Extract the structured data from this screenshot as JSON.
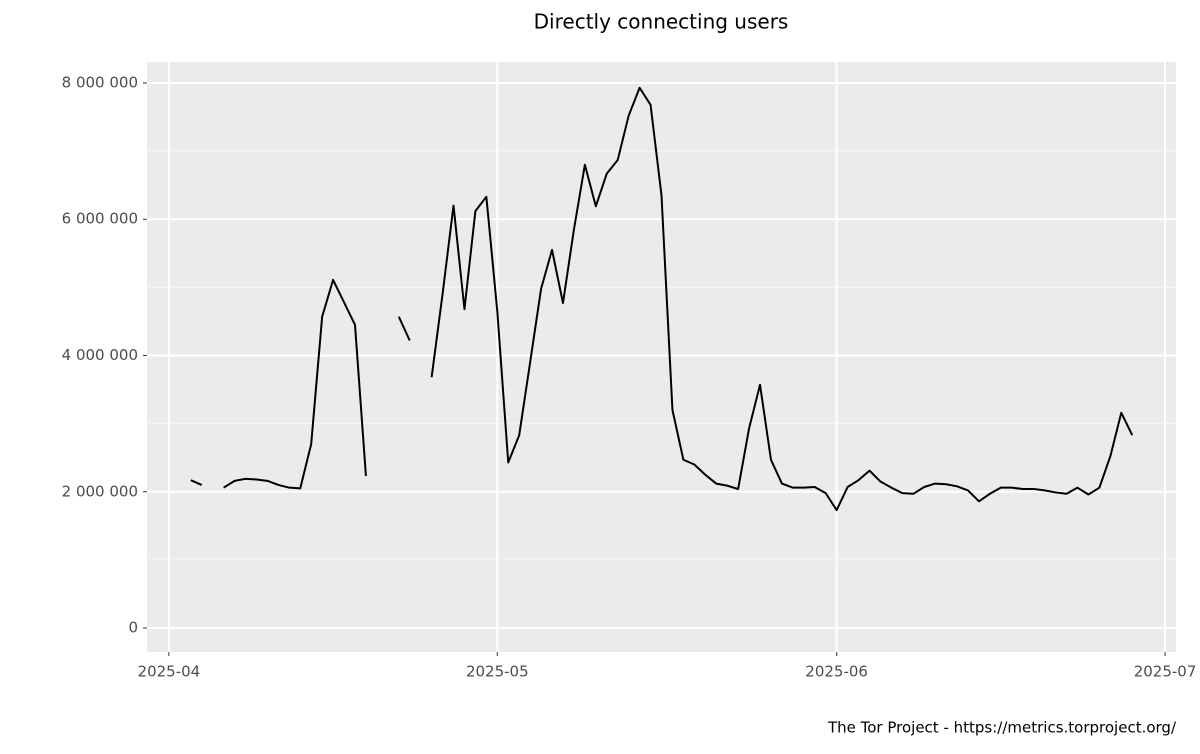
{
  "chart_data": {
    "type": "line",
    "title": "Directly connecting users",
    "caption": "The Tor Project - https://metrics.torproject.org/",
    "x": [
      "2025-04-03",
      "2025-04-04",
      "2025-04-05",
      "2025-04-06",
      "2025-04-07",
      "2025-04-08",
      "2025-04-09",
      "2025-04-10",
      "2025-04-11",
      "2025-04-12",
      "2025-04-13",
      "2025-04-14",
      "2025-04-15",
      "2025-04-16",
      "2025-04-17",
      "2025-04-18",
      "2025-04-19",
      "2025-04-20",
      "2025-04-21",
      "2025-04-22",
      "2025-04-23",
      "2025-04-24",
      "2025-04-25",
      "2025-04-26",
      "2025-04-27",
      "2025-04-28",
      "2025-04-29",
      "2025-04-30",
      "2025-05-01",
      "2025-05-02",
      "2025-05-03",
      "2025-05-04",
      "2025-05-05",
      "2025-05-06",
      "2025-05-07",
      "2025-05-08",
      "2025-05-09",
      "2025-05-10",
      "2025-05-11",
      "2025-05-12",
      "2025-05-13",
      "2025-05-14",
      "2025-05-15",
      "2025-05-16",
      "2025-05-17",
      "2025-05-18",
      "2025-05-19",
      "2025-05-20",
      "2025-05-21",
      "2025-05-22",
      "2025-05-23",
      "2025-05-24",
      "2025-05-25",
      "2025-05-26",
      "2025-05-27",
      "2025-05-28",
      "2025-05-29",
      "2025-05-30",
      "2025-05-31",
      "2025-06-01",
      "2025-06-02",
      "2025-06-03",
      "2025-06-04",
      "2025-06-05",
      "2025-06-06",
      "2025-06-07",
      "2025-06-08",
      "2025-06-09",
      "2025-06-10",
      "2025-06-11",
      "2025-06-12",
      "2025-06-13",
      "2025-06-14",
      "2025-06-15",
      "2025-06-16",
      "2025-06-17",
      "2025-06-18",
      "2025-06-19",
      "2025-06-20",
      "2025-06-21",
      "2025-06-22",
      "2025-06-23",
      "2025-06-24",
      "2025-06-25",
      "2025-06-26",
      "2025-06-27",
      "2025-06-28"
    ],
    "series": [
      {
        "color": "#000000",
        "values": [
          2170000,
          2100000,
          null,
          2060000,
          2160000,
          2190000,
          2180000,
          2160000,
          2100000,
          2060000,
          2050000,
          2700000,
          4570000,
          5110000,
          4780000,
          4450000,
          2230000,
          null,
          null,
          4570000,
          4220000,
          null,
          3680000,
          4900000,
          6200000,
          4680000,
          6120000,
          6330000,
          4650000,
          2430000,
          2830000,
          3900000,
          4980000,
          5550000,
          4770000,
          5850000,
          6800000,
          6190000,
          6670000,
          6870000,
          7520000,
          7930000,
          7680000,
          6350000,
          3200000,
          2470000,
          2400000,
          2250000,
          2120000,
          2090000,
          2040000,
          2930000,
          3570000,
          2470000,
          2120000,
          2060000,
          2060000,
          2070000,
          1980000,
          1730000,
          2070000,
          2170000,
          2310000,
          2150000,
          2060000,
          1980000,
          1970000,
          2070000,
          2120000,
          2110000,
          2080000,
          2020000,
          1860000,
          1970000,
          2060000,
          2060000,
          2040000,
          2040000,
          2020000,
          1990000,
          1970000,
          2060000,
          1960000,
          2060000,
          2520000,
          3160000,
          2830000
        ]
      }
    ],
    "xlim": [
      "2025-03-30",
      "2025-07-02"
    ],
    "xticks": [
      {
        "value": "2025-04-01",
        "label": "2025-04"
      },
      {
        "value": "2025-05-01",
        "label": "2025-05"
      },
      {
        "value": "2025-06-01",
        "label": "2025-06"
      },
      {
        "value": "2025-07-01",
        "label": "2025-07"
      }
    ],
    "ylim": [
      -352000,
      8308000
    ],
    "yticks": [
      0,
      {
        "value": 2000000,
        "label": "2 000 000"
      },
      {
        "value": 4000000,
        "label": "4 000 000"
      },
      {
        "value": 6000000,
        "label": "6 000 000"
      },
      {
        "value": 8000000,
        "label": "8 000 000"
      }
    ],
    "yminorticks": [
      1000000,
      3000000,
      5000000,
      7000000
    ],
    "grid": true
  }
}
